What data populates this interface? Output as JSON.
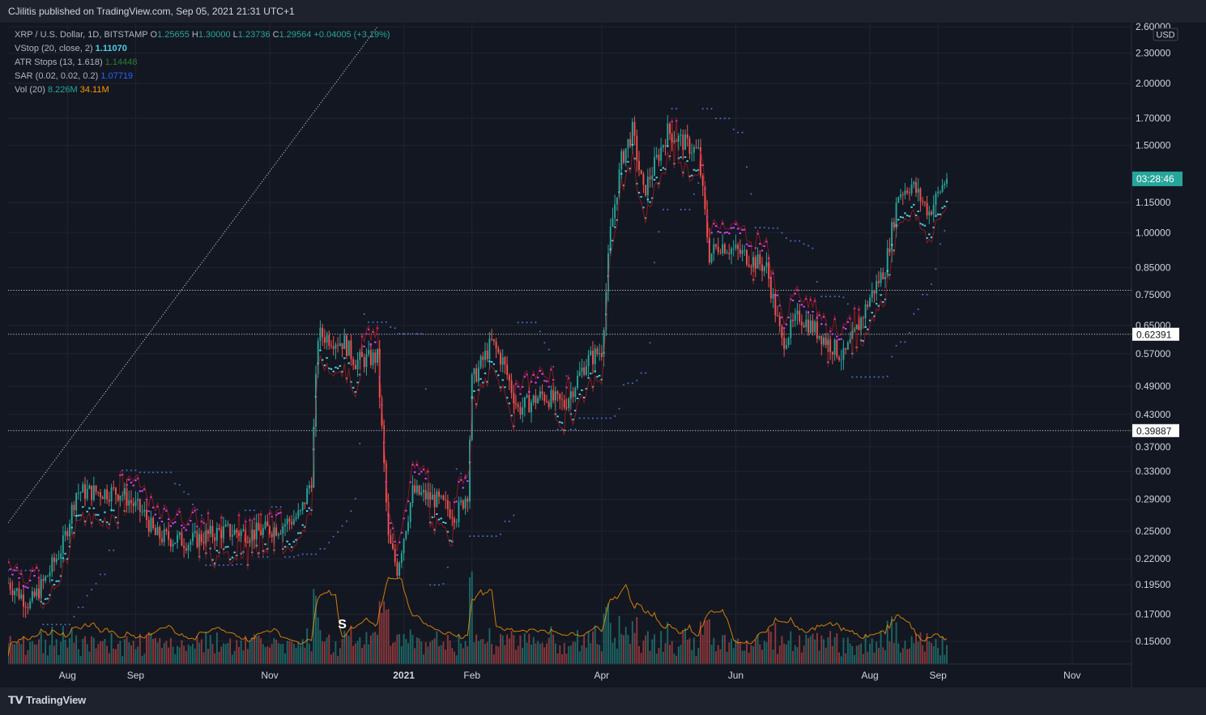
{
  "header": {
    "published": "CJilitis published on TradingView.com, Sep 05, 2021 21:31 UTC+1"
  },
  "footer": {
    "brand": "TradingView"
  },
  "legend": {
    "symbol": "XRP / U.S. Dollar, 1D, BITSTAMP",
    "o_label": "O",
    "o": "1.25655",
    "h_label": "H",
    "h": "1.30000",
    "l_label": "L",
    "l": "1.23736",
    "c_label": "C",
    "c": "1.29564",
    "change": "+0.04005 (+3.19%)",
    "vstop_name": "VStop (20, close, 2)",
    "vstop_val": "1.11070",
    "atr_name": "ATR Stops (13, 1.618)",
    "atr_val": "1.14448",
    "sar_name": "SAR (0.02, 0.02, 0.2)",
    "sar_val": "1.07719",
    "vol_name": "Vol (20)",
    "vol_val1": "8.226M",
    "vol_val2": "34.11M"
  },
  "colors": {
    "up": "#26a69a",
    "down": "#ef5350",
    "vstop": "#e040fb",
    "vstop_up": "#4dd0e1",
    "atr_down": "#b71c1c",
    "atr_up": "#1b5e20",
    "sar": "#4a6fd1",
    "vol_ma": "#ff9800",
    "price_tag": "#26a69a"
  },
  "chart_data": {
    "type": "candlestick",
    "symbol": "XRP / U.S. Dollar",
    "timeframe": "1D",
    "y_scale": "log",
    "ylim": [
      0.135,
      2.65
    ],
    "currency": "USD",
    "y_ticks": [
      "2.60000",
      "2.30000",
      "2.00000",
      "1.70000",
      "1.50000",
      "1.15000",
      "1.00000",
      "0.85000",
      "0.75000",
      "0.65000",
      "0.57000",
      "0.49000",
      "0.43000",
      "0.37000",
      "0.33000",
      "0.29000",
      "0.25000",
      "0.22000",
      "0.19500",
      "0.17000",
      "0.15000"
    ],
    "x_ticks": [
      "Aug",
      "Sep",
      "Nov",
      "2021",
      "Feb",
      "Apr",
      "Jun",
      "Aug",
      "Sep",
      "Nov"
    ],
    "x_tick_dates": [
      "2020-08-01",
      "2020-09-01",
      "2020-11-01",
      "2021-01-01",
      "2021-02-01",
      "2021-04-01",
      "2021-06-01",
      "2021-08-01",
      "2021-09-01",
      "2021-11-01"
    ],
    "x_range": [
      "2020-07-05",
      "2021-11-28"
    ],
    "price_label": "03:28:46",
    "horizontal_levels": [
      {
        "value": 0.765,
        "label": ""
      },
      {
        "value": 0.62391,
        "label": "0.62391"
      },
      {
        "value": 0.39887,
        "label": "0.39887"
      }
    ],
    "trendline": {
      "from": [
        "2020-07-05",
        0.26
      ],
      "to": [
        "2020-12-20",
        2.6
      ]
    },
    "annotation": {
      "text": "S",
      "date": "2020-12-04"
    },
    "close_keypoints": [
      [
        "2020-07-05",
        0.197
      ],
      [
        "2020-07-15",
        0.178
      ],
      [
        "2020-07-22",
        0.2
      ],
      [
        "2020-07-30",
        0.235
      ],
      [
        "2020-08-05",
        0.3
      ],
      [
        "2020-08-15",
        0.3
      ],
      [
        "2020-08-25",
        0.3
      ],
      [
        "2020-09-05",
        0.27
      ],
      [
        "2020-09-10",
        0.245
      ],
      [
        "2020-09-25",
        0.238
      ],
      [
        "2020-10-10",
        0.25
      ],
      [
        "2020-10-25",
        0.248
      ],
      [
        "2020-11-05",
        0.255
      ],
      [
        "2020-11-15",
        0.27
      ],
      [
        "2020-11-20",
        0.32
      ],
      [
        "2020-11-23",
        0.62
      ],
      [
        "2020-11-25",
        0.62
      ],
      [
        "2020-12-05",
        0.6
      ],
      [
        "2020-12-10",
        0.55
      ],
      [
        "2020-12-20",
        0.56
      ],
      [
        "2020-12-25",
        0.24
      ],
      [
        "2020-12-29",
        0.21
      ],
      [
        "2021-01-05",
        0.3
      ],
      [
        "2021-01-15",
        0.29
      ],
      [
        "2021-01-25",
        0.27
      ],
      [
        "2021-01-30",
        0.3
      ],
      [
        "2021-02-01",
        0.5
      ],
      [
        "2021-02-10",
        0.6
      ],
      [
        "2021-02-15",
        0.55
      ],
      [
        "2021-02-22",
        0.44
      ],
      [
        "2021-03-05",
        0.47
      ],
      [
        "2021-03-15",
        0.45
      ],
      [
        "2021-03-25",
        0.55
      ],
      [
        "2021-04-01",
        0.58
      ],
      [
        "2021-04-05",
        1.0
      ],
      [
        "2021-04-10",
        1.4
      ],
      [
        "2021-04-15",
        1.6
      ],
      [
        "2021-04-20",
        1.2
      ],
      [
        "2021-05-01",
        1.6
      ],
      [
        "2021-05-10",
        1.5
      ],
      [
        "2021-05-15",
        1.45
      ],
      [
        "2021-05-20",
        0.9
      ],
      [
        "2021-05-25",
        0.95
      ],
      [
        "2021-06-05",
        0.9
      ],
      [
        "2021-06-15",
        0.85
      ],
      [
        "2021-06-22",
        0.6
      ],
      [
        "2021-06-30",
        0.68
      ],
      [
        "2021-07-10",
        0.62
      ],
      [
        "2021-07-20",
        0.56
      ],
      [
        "2021-07-25",
        0.62
      ],
      [
        "2021-08-01",
        0.74
      ],
      [
        "2021-08-08",
        0.85
      ],
      [
        "2021-08-14",
        1.2
      ],
      [
        "2021-08-20",
        1.25
      ],
      [
        "2021-08-28",
        1.1
      ],
      [
        "2021-09-05",
        1.29564
      ]
    ],
    "volume_ma_range": [
      "8.226M",
      "34.11M"
    ]
  }
}
